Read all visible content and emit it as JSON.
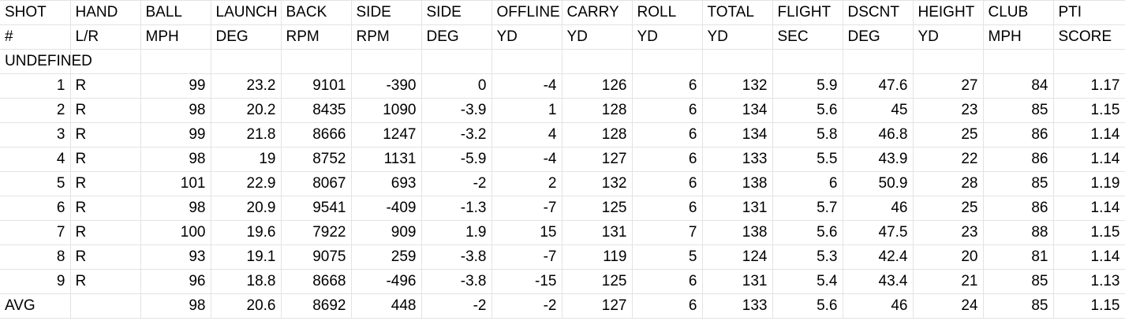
{
  "header_row_1": [
    "SHOT",
    "HAND",
    "BALL",
    "LAUNCH",
    "BACK",
    "SIDE",
    "SIDE",
    "OFFLINE",
    "CARRY",
    "ROLL",
    "TOTAL",
    "FLIGHT",
    "DSCNT",
    "HEIGHT",
    "CLUB",
    "PTI"
  ],
  "header_row_2": [
    "#",
    "L/R",
    "MPH",
    "DEG",
    "RPM",
    "RPM",
    "DEG",
    "YD",
    "YD",
    "YD",
    "YD",
    "SEC",
    "DEG",
    "YD",
    "MPH",
    "SCORE"
  ],
  "group_label": "UNDEFINED",
  "shots": [
    [
      "1",
      "R",
      "99",
      "23.2",
      "9101",
      "-390",
      "0",
      "-4",
      "126",
      "6",
      "132",
      "5.9",
      "47.6",
      "27",
      "84",
      "1.17"
    ],
    [
      "2",
      "R",
      "98",
      "20.2",
      "8435",
      "1090",
      "-3.9",
      "1",
      "128",
      "6",
      "134",
      "5.6",
      "45",
      "23",
      "85",
      "1.15"
    ],
    [
      "3",
      "R",
      "99",
      "21.8",
      "8666",
      "1247",
      "-3.2",
      "4",
      "128",
      "6",
      "134",
      "5.8",
      "46.8",
      "25",
      "86",
      "1.14"
    ],
    [
      "4",
      "R",
      "98",
      "19",
      "8752",
      "1131",
      "-5.9",
      "-4",
      "127",
      "6",
      "133",
      "5.5",
      "43.9",
      "22",
      "86",
      "1.14"
    ],
    [
      "5",
      "R",
      "101",
      "22.9",
      "8067",
      "693",
      "-2",
      "2",
      "132",
      "6",
      "138",
      "6",
      "50.9",
      "28",
      "85",
      "1.19"
    ],
    [
      "6",
      "R",
      "98",
      "20.9",
      "9541",
      "-409",
      "-1.3",
      "-7",
      "125",
      "6",
      "131",
      "5.7",
      "46",
      "25",
      "86",
      "1.14"
    ],
    [
      "7",
      "R",
      "100",
      "19.6",
      "7922",
      "909",
      "1.9",
      "15",
      "131",
      "7",
      "138",
      "5.6",
      "47.5",
      "23",
      "88",
      "1.15"
    ],
    [
      "8",
      "R",
      "93",
      "19.1",
      "9075",
      "259",
      "-3.8",
      "-7",
      "119",
      "5",
      "124",
      "5.3",
      "42.4",
      "20",
      "81",
      "1.14"
    ],
    [
      "9",
      "R",
      "96",
      "18.8",
      "8668",
      "-496",
      "-3.8",
      "-15",
      "125",
      "6",
      "131",
      "5.4",
      "43.4",
      "21",
      "85",
      "1.13"
    ]
  ],
  "average_row": [
    "AVG",
    "",
    "98",
    "20.6",
    "8692",
    "448",
    "-2",
    "-2",
    "127",
    "6",
    "133",
    "5.6",
    "46",
    "24",
    "85",
    "1.15"
  ],
  "colors": {
    "gridline": "#e2e3e3",
    "text": "#000000",
    "background": "#ffffff"
  }
}
